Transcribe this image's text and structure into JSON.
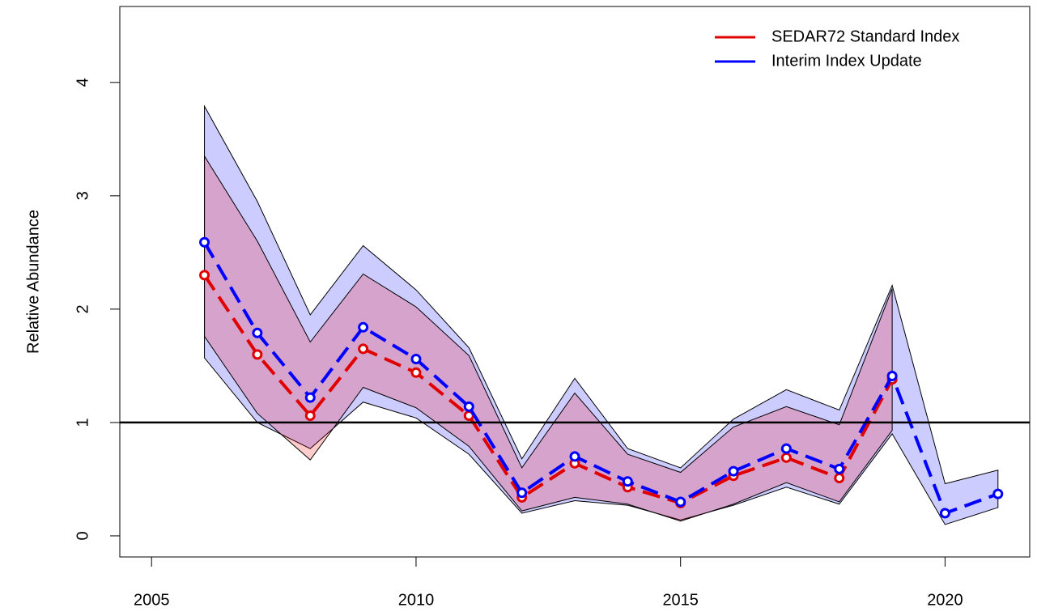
{
  "chart_data": {
    "type": "line",
    "y_label": "Relative Abundance",
    "xlim": [
      2004.4,
      2021.6
    ],
    "ylim": [
      -0.186,
      4.67
    ],
    "xticks": [
      2005,
      2010,
      2015,
      2020
    ],
    "yticks": [
      0,
      1,
      2,
      3,
      4
    ],
    "hline": 1,
    "legend": "top-right",
    "series": [
      {
        "name": "SEDAR72 Standard Index",
        "color": "#e00000",
        "band_color": "rgba(255,0,0,0.2)",
        "x": [
          2006,
          2007,
          2008,
          2009,
          2010,
          2011,
          2012,
          2013,
          2014,
          2015,
          2016,
          2017,
          2018,
          2019
        ],
        "values": [
          2.3,
          1.6,
          1.06,
          1.65,
          1.44,
          1.06,
          0.34,
          0.64,
          0.43,
          0.29,
          0.53,
          0.69,
          0.51,
          1.38
        ],
        "upper": [
          3.35,
          2.6,
          1.71,
          2.31,
          2.02,
          1.59,
          0.6,
          1.26,
          0.72,
          0.56,
          0.96,
          1.14,
          0.98,
          2.18
        ],
        "lower": [
          1.76,
          1.08,
          0.67,
          1.31,
          1.13,
          0.79,
          0.22,
          0.34,
          0.28,
          0.13,
          0.28,
          0.47,
          0.3,
          0.93
        ]
      },
      {
        "name": "Interim Index Update",
        "color": "#0000ff",
        "band_color": "rgba(0,0,255,0.2)",
        "x": [
          2006,
          2007,
          2008,
          2009,
          2010,
          2011,
          2012,
          2013,
          2014,
          2015,
          2016,
          2017,
          2018,
          2019,
          2020,
          2021
        ],
        "values": [
          2.59,
          1.79,
          1.22,
          1.84,
          1.56,
          1.14,
          0.38,
          0.7,
          0.48,
          0.3,
          0.57,
          0.77,
          0.59,
          1.41,
          0.2,
          0.37
        ],
        "upper": [
          3.79,
          2.95,
          1.95,
          2.56,
          2.17,
          1.66,
          0.68,
          1.39,
          0.77,
          0.6,
          1.03,
          1.29,
          1.11,
          2.21,
          0.46,
          0.58
        ],
        "lower": [
          1.57,
          1.0,
          0.77,
          1.18,
          1.04,
          0.72,
          0.2,
          0.31,
          0.27,
          0.14,
          0.27,
          0.43,
          0.28,
          0.9,
          0.1,
          0.25
        ]
      }
    ]
  }
}
